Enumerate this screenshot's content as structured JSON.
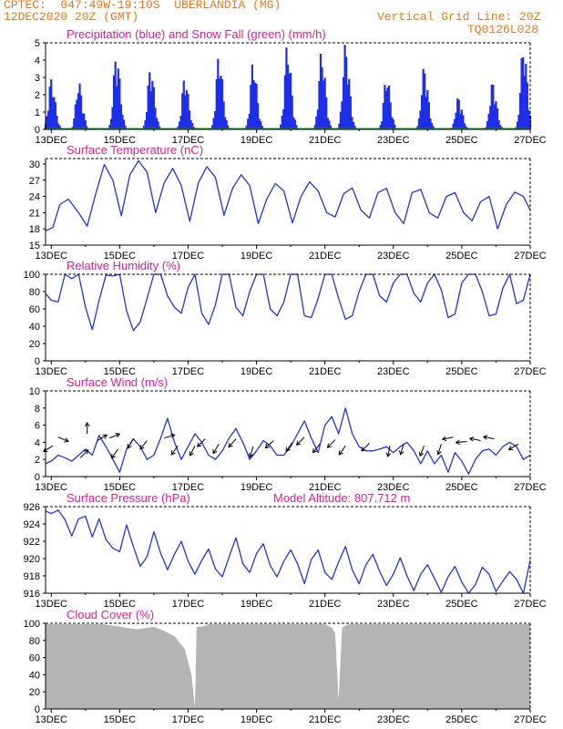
{
  "header": {
    "line1": "CPTEC:  047:49W-19:10S  UBERLANDIA (MG)",
    "line2": "12DEC2020 20Z (GMT)",
    "grid_note": "Vertical Grid Line: 20Z",
    "model_id": "TQ0126L028"
  },
  "colors": {
    "header_text": "#e87820",
    "panel_title": "#e0208c",
    "precip": "#1f2fe8",
    "snow": "#1a9a1a",
    "line": "#2233dd",
    "cloud": "#b4b4b4",
    "axis": "#000000"
  },
  "x_labels": [
    "13DEC",
    "15DEC",
    "17DEC",
    "19DEC",
    "21DEC",
    "23DEC",
    "25DEC",
    "27DEC"
  ],
  "chart_data": [
    {
      "id": "precip",
      "type": "bar",
      "title": "Precipitation (blue) and Snow Fall (green) (mm/h)",
      "ylim": [
        0,
        5
      ],
      "yticks": [
        0,
        1,
        2,
        3,
        4,
        5
      ],
      "x_range_days": [
        12.83,
        27.0
      ],
      "series": [
        {
          "name": "Precipitation",
          "color": "#1f2fe8",
          "peaks": [
            [
              13.0,
              3.0
            ],
            [
              13.8,
              2.8
            ],
            [
              14.9,
              4.5
            ],
            [
              15.9,
              3.7
            ],
            [
              16.9,
              3.1
            ],
            [
              17.9,
              4.4
            ],
            [
              18.9,
              4.0
            ],
            [
              19.9,
              5.0
            ],
            [
              20.9,
              4.6
            ],
            [
              21.6,
              5.0
            ],
            [
              22.8,
              3.2
            ],
            [
              23.9,
              3.7
            ],
            [
              24.9,
              1.9
            ],
            [
              25.9,
              2.8
            ],
            [
              26.8,
              5.0
            ]
          ]
        },
        {
          "name": "Snow Fall",
          "color": "#1a9a1a",
          "values": [
            0
          ]
        }
      ]
    },
    {
      "id": "temp",
      "type": "line",
      "title": "Surface Temperature (nC)",
      "ylim": [
        15,
        31
      ],
      "yticks": [
        15,
        18,
        21,
        24,
        27,
        30
      ],
      "x": [
        12.83,
        13.05,
        13.25,
        13.5,
        13.8,
        14.05,
        14.3,
        14.55,
        14.8,
        15.05,
        15.3,
        15.55,
        15.8,
        16.05,
        16.3,
        16.55,
        16.8,
        17.05,
        17.3,
        17.55,
        17.8,
        18.05,
        18.3,
        18.55,
        18.8,
        19.05,
        19.3,
        19.55,
        19.8,
        20.05,
        20.3,
        20.55,
        20.8,
        21.05,
        21.3,
        21.55,
        21.8,
        22.05,
        22.3,
        22.55,
        22.8,
        23.05,
        23.3,
        23.55,
        23.8,
        24.05,
        24.3,
        24.55,
        24.8,
        25.05,
        25.3,
        25.55,
        25.8,
        26.05,
        26.3,
        26.55,
        26.8,
        27.0
      ],
      "y": [
        17.6,
        18.3,
        22.5,
        23.5,
        21.0,
        18.5,
        24.5,
        29.9,
        27.0,
        20.4,
        28.0,
        30.6,
        28.5,
        21.0,
        26.5,
        29.2,
        26.0,
        19.4,
        26.5,
        29.5,
        27.5,
        20.5,
        25.5,
        28.0,
        26.0,
        19.0,
        23.5,
        26.4,
        25.0,
        19.1,
        24.0,
        26.7,
        25.0,
        21.0,
        20.2,
        24.5,
        25.6,
        21.5,
        20.0,
        24.7,
        25.5,
        21.0,
        19.0,
        24.7,
        25.3,
        21.0,
        20.0,
        24.0,
        24.7,
        21.0,
        19.5,
        23.0,
        24.0,
        18.0,
        22.5,
        24.8,
        24.0,
        21.5
      ]
    },
    {
      "id": "rh",
      "type": "line",
      "title": "Relative Humidity (%)",
      "ylim": [
        0,
        100
      ],
      "yticks": [
        0,
        20,
        40,
        60,
        80,
        100
      ],
      "x": [
        12.83,
        13.0,
        13.2,
        13.4,
        13.6,
        13.8,
        14.0,
        14.2,
        14.4,
        14.6,
        14.8,
        15.0,
        15.2,
        15.4,
        15.6,
        15.8,
        16.0,
        16.2,
        16.4,
        16.6,
        16.8,
        17.0,
        17.2,
        17.4,
        17.6,
        17.8,
        18.0,
        18.2,
        18.4,
        18.6,
        18.8,
        19.0,
        19.2,
        19.4,
        19.6,
        19.8,
        20.0,
        20.2,
        20.4,
        20.6,
        20.8,
        21.0,
        21.2,
        21.4,
        21.6,
        21.8,
        22.0,
        22.2,
        22.4,
        22.6,
        22.8,
        23.0,
        23.2,
        23.4,
        23.6,
        23.8,
        24.0,
        24.2,
        24.4,
        24.6,
        24.8,
        25.0,
        25.2,
        25.4,
        25.6,
        25.8,
        26.0,
        26.2,
        26.4,
        26.6,
        26.8,
        27.0
      ],
      "y": [
        78,
        70,
        68,
        100,
        95,
        100,
        62,
        36,
        70,
        99,
        98,
        100,
        58,
        35,
        45,
        72,
        100,
        100,
        75,
        62,
        55,
        85,
        100,
        55,
        42,
        65,
        100,
        100,
        62,
        52,
        80,
        100,
        100,
        60,
        52,
        68,
        100,
        100,
        52,
        50,
        72,
        100,
        100,
        72,
        48,
        52,
        80,
        100,
        100,
        75,
        68,
        90,
        100,
        100,
        78,
        68,
        90,
        100,
        82,
        50,
        54,
        90,
        100,
        100,
        80,
        52,
        54,
        84,
        100,
        66,
        70,
        100
      ]
    },
    {
      "id": "wind",
      "type": "line",
      "title": "Surface Wind (m/s)",
      "ylim": [
        0,
        10
      ],
      "yticks": [
        0,
        2,
        4,
        6,
        8,
        10
      ],
      "x": [
        12.83,
        13.0,
        13.2,
        13.4,
        13.6,
        13.8,
        14.0,
        14.2,
        14.4,
        14.6,
        14.8,
        15.0,
        15.2,
        15.4,
        15.6,
        15.8,
        16.0,
        16.2,
        16.4,
        16.6,
        16.8,
        17.0,
        17.2,
        17.4,
        17.6,
        17.8,
        18.0,
        18.2,
        18.4,
        18.6,
        18.8,
        19.0,
        19.2,
        19.4,
        19.6,
        19.8,
        20.0,
        20.2,
        20.4,
        20.6,
        20.8,
        21.0,
        21.2,
        21.4,
        21.6,
        21.8,
        22.0,
        22.2,
        22.4,
        22.6,
        22.8,
        23.0,
        23.2,
        23.4,
        23.6,
        23.8,
        24.0,
        24.2,
        24.4,
        24.6,
        24.8,
        25.0,
        25.2,
        25.4,
        25.6,
        25.8,
        26.0,
        26.2,
        26.4,
        26.6,
        26.8,
        27.0
      ],
      "y": [
        1.5,
        1.8,
        2.5,
        2.2,
        1.8,
        2.5,
        3.2,
        2.5,
        4.8,
        3.5,
        2.0,
        0.5,
        3.2,
        4.4,
        3.5,
        2.0,
        2.5,
        4.5,
        6.8,
        4.0,
        2.0,
        3.5,
        5.0,
        4.0,
        2.5,
        2.0,
        3.0,
        4.5,
        5.6,
        4.0,
        2.0,
        3.0,
        4.2,
        3.6,
        2.5,
        2.5,
        3.5,
        5.0,
        6.5,
        4.5,
        2.8,
        6.0,
        7.0,
        5.0,
        8.0,
        5.0,
        3.5,
        3.0,
        3.0,
        3.2,
        3.5,
        2.8,
        3.5,
        4.0,
        3.0,
        1.5,
        3.0,
        1.5,
        2.5,
        0.5,
        2.8,
        1.8,
        0.3,
        2.0,
        3.0,
        3.2,
        2.5,
        3.5,
        4.0,
        3.5,
        2.0,
        2.5
      ],
      "arrows": [
        [
          13.05,
          3.6,
          -1,
          -0.6
        ],
        [
          13.2,
          4.6,
          1,
          -0.4
        ],
        [
          13.85,
          2.2,
          1,
          1
        ],
        [
          14.05,
          5.0,
          0,
          1
        ],
        [
          14.35,
          4.2,
          1,
          0.6
        ],
        [
          14.7,
          4.5,
          1,
          0.4
        ],
        [
          14.95,
          3.2,
          -0.7,
          -1
        ],
        [
          15.4,
          4.4,
          -0.6,
          -1
        ],
        [
          15.8,
          4.2,
          -0.8,
          -1
        ],
        [
          16.3,
          4.5,
          1,
          0.3
        ],
        [
          16.7,
          3.6,
          -0.7,
          -1
        ],
        [
          17.2,
          3.6,
          -0.5,
          -1
        ],
        [
          17.5,
          4.4,
          -0.9,
          -0.9
        ],
        [
          17.9,
          3.8,
          -0.6,
          -1
        ],
        [
          18.4,
          4.4,
          -0.8,
          -0.9
        ],
        [
          18.9,
          3.5,
          -0.3,
          -1
        ],
        [
          19.5,
          4.2,
          -0.9,
          -0.8
        ],
        [
          20.05,
          4.0,
          -0.7,
          -1
        ],
        [
          20.4,
          4.6,
          -0.9,
          -0.9
        ],
        [
          20.85,
          3.8,
          -0.8,
          -1
        ],
        [
          21.3,
          4.3,
          -0.9,
          -0.9
        ],
        [
          21.6,
          3.6,
          -0.7,
          -1
        ],
        [
          22.3,
          3.9,
          -0.8,
          -0.8
        ],
        [
          22.9,
          3.6,
          -0.2,
          -1
        ],
        [
          23.3,
          3.8,
          -0.3,
          -1
        ],
        [
          23.9,
          3.6,
          -0.4,
          -1
        ],
        [
          24.4,
          3.8,
          -0.3,
          -1
        ],
        [
          24.75,
          4.6,
          -1,
          -0.2
        ],
        [
          25.15,
          4.1,
          -1,
          -0.1
        ],
        [
          25.55,
          4.2,
          -1,
          0.2
        ],
        [
          25.95,
          4.4,
          -1,
          0.2
        ],
        [
          26.65,
          3.8,
          -1,
          -0.6
        ]
      ]
    },
    {
      "id": "pressure",
      "type": "line",
      "title": "Surface Pressure (hPa)",
      "annotation": "Model Altitude: 807.712 m",
      "ylim": [
        916,
        926
      ],
      "yticks": [
        916,
        918,
        920,
        922,
        924,
        926
      ],
      "x": [
        12.83,
        13.0,
        13.2,
        13.4,
        13.6,
        13.8,
        14.0,
        14.2,
        14.4,
        14.6,
        14.8,
        15.0,
        15.2,
        15.4,
        15.6,
        15.8,
        16.0,
        16.2,
        16.4,
        16.6,
        16.8,
        17.0,
        17.2,
        17.4,
        17.6,
        17.8,
        18.0,
        18.2,
        18.4,
        18.6,
        18.8,
        19.0,
        19.2,
        19.4,
        19.6,
        19.8,
        20.0,
        20.2,
        20.4,
        20.6,
        20.8,
        21.0,
        21.2,
        21.4,
        21.6,
        21.8,
        22.0,
        22.2,
        22.4,
        22.6,
        22.8,
        23.0,
        23.2,
        23.4,
        23.6,
        23.8,
        24.0,
        24.2,
        24.4,
        24.6,
        24.8,
        25.0,
        25.2,
        25.4,
        25.6,
        25.8,
        26.0,
        26.2,
        26.4,
        26.6,
        26.8,
        27.0
      ],
      "y": [
        925.5,
        925.2,
        925.6,
        924.5,
        922.6,
        924.6,
        924.9,
        922.5,
        924.6,
        922.2,
        921.2,
        920.8,
        923.9,
        921.4,
        919.1,
        920.2,
        923.1,
        920.6,
        918.7,
        920.5,
        922.0,
        919.7,
        918.2,
        919.8,
        921.1,
        918.8,
        917.9,
        920.2,
        922.4,
        919.4,
        918.4,
        920.6,
        921.7,
        919.2,
        917.9,
        919.7,
        921.0,
        919.4,
        917.1,
        919.9,
        921.0,
        918.4,
        917.6,
        919.6,
        921.4,
        918.7,
        917.1,
        919.3,
        920.5,
        918.5,
        916.9,
        918.2,
        920.1,
        918.0,
        916.3,
        918.2,
        919.3,
        917.7,
        916.1,
        917.9,
        919.1,
        917.3,
        916.0,
        917.0,
        919.0,
        918.2,
        916.2,
        917.4,
        918.5,
        917.6,
        916.0,
        919.8
      ]
    },
    {
      "id": "cloud",
      "type": "area",
      "title": "Cloud Cover (%)",
      "ylim": [
        0,
        100
      ],
      "yticks": [
        0,
        20,
        40,
        60,
        80,
        100
      ],
      "x": [
        12.83,
        13.5,
        14.0,
        14.5,
        15.0,
        15.5,
        16.0,
        16.3,
        16.6,
        16.9,
        17.1,
        17.2,
        17.25,
        17.4,
        17.6,
        18.0,
        18.5,
        19.0,
        19.5,
        20.0,
        20.5,
        21.0,
        21.2,
        21.3,
        21.4,
        21.5,
        21.7,
        22.0,
        22.5,
        23.0,
        23.5,
        24.0,
        24.5,
        25.0,
        25.5,
        26.0,
        26.5,
        27.0
      ],
      "y": [
        99,
        99,
        99,
        99,
        96,
        93,
        96,
        91,
        85,
        70,
        40,
        2,
        96,
        96,
        99,
        99,
        99,
        99,
        99,
        99,
        99,
        99,
        95,
        88,
        10,
        95,
        99,
        99,
        99,
        99,
        99,
        99,
        99,
        99,
        99,
        99,
        99,
        99
      ]
    }
  ]
}
